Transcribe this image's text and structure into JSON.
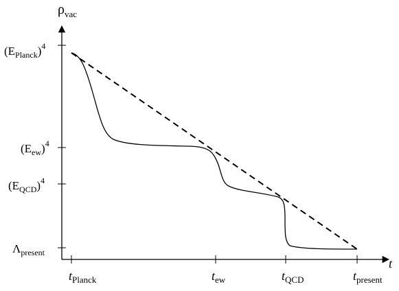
{
  "chart_data": {
    "type": "line",
    "axis": {
      "y_label": {
        "main": "ρ",
        "sub": "vac"
      },
      "x_label": "t"
    },
    "y_ticks": [
      {
        "id": "planck",
        "base": "(E",
        "sub": "Planck",
        "close": ")",
        "sup": "4"
      },
      {
        "id": "ew",
        "base": "(E",
        "sub": "ew",
        "close": ")",
        "sup": "4"
      },
      {
        "id": "qcd",
        "base": "(E",
        "sub": "QCD",
        "close": ")",
        "sup": "4"
      },
      {
        "id": "present",
        "base": "Λ",
        "sub": "present",
        "close": "",
        "sup": ""
      }
    ],
    "x_ticks": [
      {
        "id": "planck",
        "base": "t",
        "sub": "Planck"
      },
      {
        "id": "ew",
        "base": "t",
        "sub": "ew"
      },
      {
        "id": "qcd",
        "base": "t",
        "sub": "QCD"
      },
      {
        "id": "present",
        "base": "t",
        "sub": "present"
      }
    ],
    "series": [
      {
        "style": "dashed",
        "points": [
          [
            "planck",
            "planck"
          ],
          [
            "present",
            "present"
          ]
        ]
      },
      {
        "style": "solid",
        "points": [
          [
            "planck",
            "planck"
          ],
          [
            "plateau-ew",
            "ew"
          ],
          [
            "ew",
            "ew"
          ],
          [
            "plateau-qcd",
            "qcd"
          ],
          [
            "qcd",
            "qcd"
          ],
          [
            "present",
            "present"
          ]
        ]
      }
    ]
  }
}
